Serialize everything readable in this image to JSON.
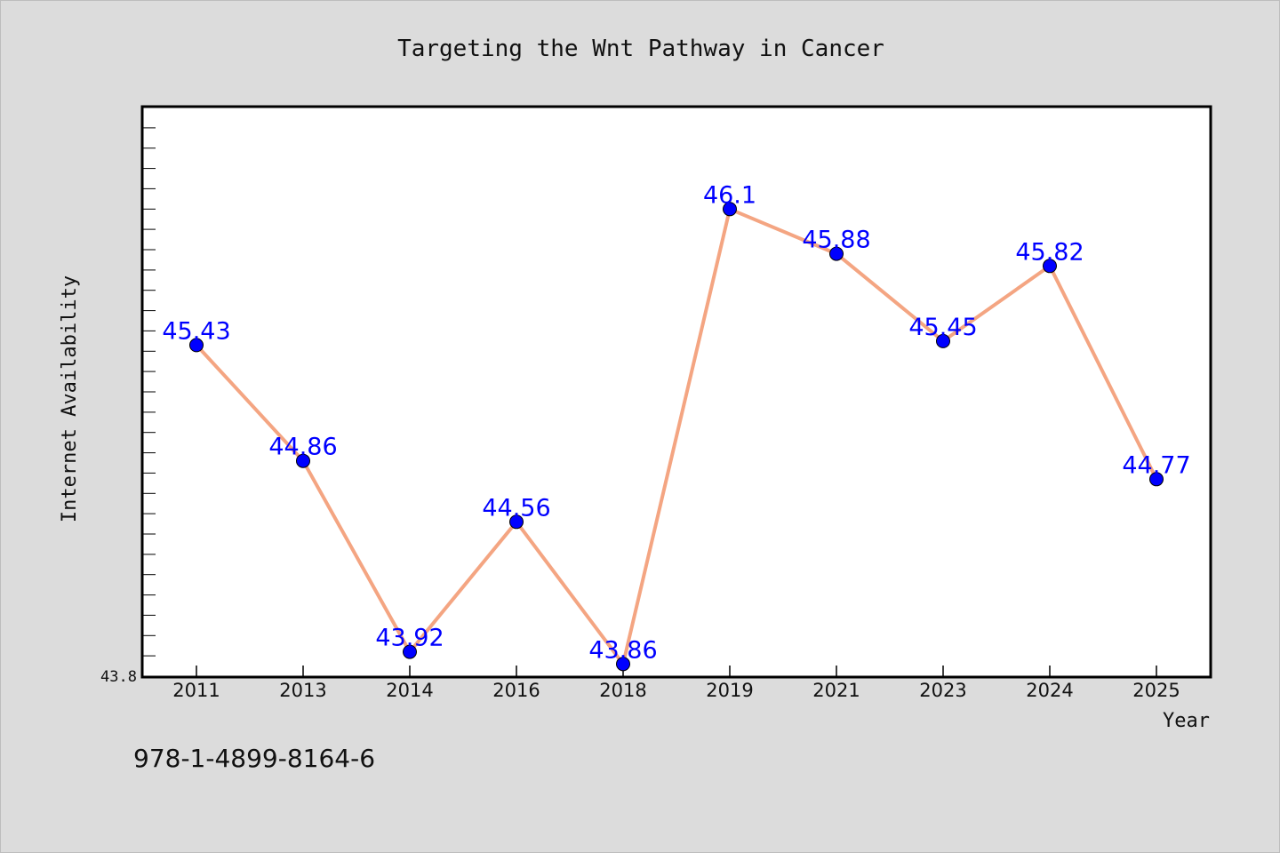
{
  "colors": {
    "background": "#dcdcdc",
    "plot_background": "#ffffff",
    "line": "#f4a582",
    "marker": "#0000ff",
    "data_label": "#0000ff",
    "text": "#111111"
  },
  "chart_data": {
    "type": "line",
    "title": "Targeting the Wnt Pathway in Cancer",
    "xlabel": "Year",
    "ylabel": "Internet Availability",
    "categories": [
      "2011",
      "2013",
      "2014",
      "2016",
      "2018",
      "2019",
      "2021",
      "2023",
      "2024",
      "2025"
    ],
    "series": [
      {
        "values": [
          45.43,
          44.86,
          43.92,
          44.56,
          43.86,
          46.1,
          45.88,
          45.45,
          45.82,
          44.77
        ]
      }
    ],
    "data_labels": [
      "45.43",
      "44.86",
      "43.92",
      "44.56",
      "43.86",
      "46.1",
      "45.88",
      "45.45",
      "45.82",
      "44.77"
    ],
    "ylim": [
      43.8,
      46.6
    ],
    "y_tick_labels": [
      "43.8"
    ],
    "grid": false,
    "legend": "none"
  },
  "footer": {
    "isbn": "978-1-4899-8164-6"
  }
}
